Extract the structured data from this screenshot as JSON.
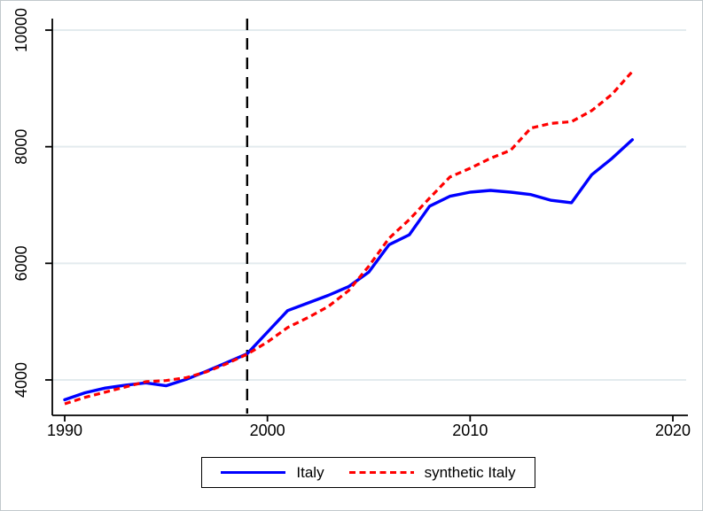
{
  "chart_data": {
    "type": "line",
    "title": "",
    "xlabel": "",
    "ylabel": "",
    "x": [
      1990,
      1991,
      1992,
      1993,
      1994,
      1995,
      1996,
      1997,
      1998,
      1999,
      2000,
      2001,
      2002,
      2003,
      2004,
      2005,
      2006,
      2007,
      2008,
      2009,
      2010,
      2011,
      2012,
      2013,
      2014,
      2015,
      2016,
      2017,
      2018
    ],
    "series": [
      {
        "name": "Italy",
        "color": "#0000ff",
        "style": "solid",
        "values": [
          3660,
          3780,
          3860,
          3910,
          3950,
          3900,
          4010,
          4150,
          4300,
          4450,
          4820,
          5190,
          5320,
          5450,
          5600,
          5850,
          6320,
          6490,
          6980,
          7150,
          7220,
          7250,
          7220,
          7180,
          7080,
          7040,
          7520,
          7800,
          8120
        ]
      },
      {
        "name": "synthetic Italy",
        "color": "#ff0000",
        "style": "short-dashed",
        "values": [
          3590,
          3700,
          3790,
          3880,
          3970,
          3990,
          4040,
          4140,
          4280,
          4440,
          4650,
          4900,
          5070,
          5260,
          5530,
          5950,
          6430,
          6750,
          7120,
          7480,
          7630,
          7800,
          7940,
          8320,
          8400,
          8430,
          8620,
          8900,
          9290
        ]
      }
    ],
    "xticks": [
      1990,
      2000,
      2010,
      2020
    ],
    "yticks": [
      4000,
      6000,
      8000,
      10000
    ],
    "xlim": [
      1989.4,
      2020.8
    ],
    "ylim": [
      3390,
      10170
    ],
    "treatment_line": {
      "x": 1999,
      "style": "dashed",
      "color": "#000000"
    },
    "grid": "horizontal",
    "grid_color": "#e3ebee",
    "axis_color": "#000000",
    "background_color": "#ffffff",
    "legend_position": "bottom-center"
  }
}
